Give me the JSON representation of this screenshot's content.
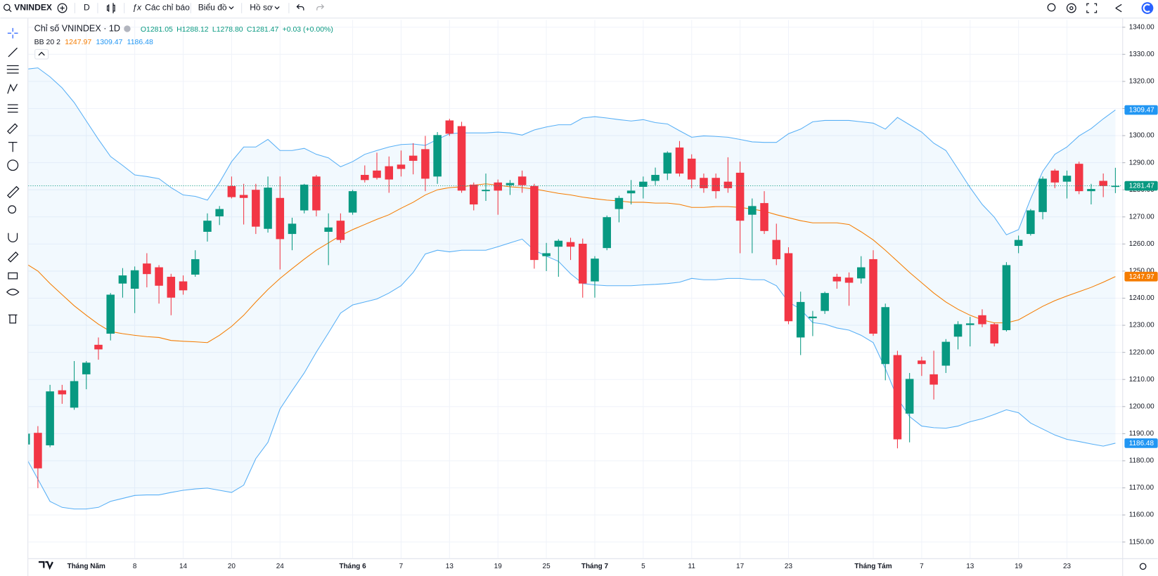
{
  "toolbar": {
    "symbol": "VNINDEX",
    "interval": "D",
    "indicators": "Các chỉ báo",
    "chart": "Biểu đồ",
    "profile": "Hồ sơ"
  },
  "legend": {
    "title": "Chỉ số VNINDEX · 1D",
    "ohlc": [
      "O1281.05",
      "H1288.12",
      "L1278.80",
      "C1281.47"
    ],
    "change": "+0.03 (+0.00%)",
    "indicator": "BB 20 2"
  },
  "chart_data": {
    "type": "candlestick",
    "up_color": "#089981",
    "down_color": "#f23645",
    "categories": [
      null,
      null,
      null,
      null,
      null,
      "Tháng Năm",
      null,
      null,
      null,
      "8",
      null,
      null,
      null,
      "14",
      null,
      null,
      null,
      "20",
      null,
      null,
      null,
      "24",
      null,
      null,
      null,
      null,
      null,
      "Tháng 6",
      null,
      null,
      null,
      "7",
      null,
      null,
      null,
      "13",
      null,
      null,
      null,
      "19",
      null,
      null,
      null,
      "25",
      null,
      null,
      null,
      "Tháng 7",
      null,
      null,
      null,
      "5",
      null,
      null,
      null,
      "11",
      null,
      null,
      null,
      "17",
      null,
      null,
      null,
      "23",
      null,
      null,
      null,
      null,
      null,
      null,
      "Tháng Tám",
      null,
      null,
      null,
      "7",
      null,
      null,
      null,
      "13",
      null,
      null,
      null,
      "19",
      null,
      null,
      null,
      "23",
      null,
      null,
      null,
      null
    ],
    "candles": {
      "open": [
        1186,
        1190.3,
        1185.7,
        1206,
        1199.6,
        1211.9,
        1222.8,
        1226.9,
        1245.4,
        1243.5,
        1252.8,
        1251.4,
        1247.9,
        1246.2,
        1248.7,
        1264.5,
        1270.2,
        1281.4,
        1278.1,
        1280,
        1265.6,
        1277,
        1263.7,
        1272.4,
        1284.9,
        1264.5,
        1268.6,
        1271.6,
        1285.5,
        1287.1,
        1288.7,
        1289.3,
        1292.6,
        1295,
        1284.9,
        1305.6,
        1303.5,
        1281.9,
        1279.5,
        1282.7,
        1281.7,
        1284.9,
        1281.4,
        1255.5,
        1259,
        1260.7,
        1260.1,
        1246.2,
        1258.5,
        1272.9,
        1278.7,
        1281.1,
        1283.3,
        1286,
        1295.6,
        1291.5,
        1284.4,
        1284.4,
        1283,
        1286.3,
        1270.8,
        1275.1,
        1261.5,
        1256.6,
        1225.5,
        1232.6,
        1235.3,
        1247.9,
        1247.6,
        1247.3,
        1254.4,
        1215.7,
        1219,
        1197.4,
        1217,
        1211.9,
        1215.1,
        1225.8,
        1230.1,
        1233.7,
        1230.4,
        1228.2,
        1259.3,
        1263.7,
        1271.8,
        1287.1,
        1283,
        1289.6,
        1279.5,
        1283.3,
        1281.05
      ],
      "high": [
        1191,
        1192.8,
        1208,
        1208,
        1216.8,
        1216.8,
        1225.5,
        1241.9,
        1251.1,
        1251.7,
        1256.6,
        1252.2,
        1249,
        1248.4,
        1257.7,
        1271.3,
        1274,
        1284.9,
        1282.2,
        1282.2,
        1284.9,
        1284.9,
        1269.7,
        1282.2,
        1285.5,
        1271.3,
        1271.3,
        1280,
        1289,
        1293.7,
        1292.3,
        1294.5,
        1297.2,
        1299.9,
        1301.3,
        1306.2,
        1305.1,
        1282.7,
        1286,
        1283.8,
        1283.6,
        1287.1,
        1282.2,
        1260.4,
        1261.8,
        1262.3,
        1262,
        1255.5,
        1270.5,
        1277.8,
        1283.6,
        1284.9,
        1288.2,
        1294.2,
        1298,
        1293.1,
        1286,
        1286,
        1292,
        1290.4,
        1276.8,
        1279.5,
        1267.5,
        1258.8,
        1242.4,
        1235.3,
        1242.4,
        1249,
        1249.5,
        1255.5,
        1257.7,
        1238,
        1220.6,
        1212.4,
        1218.4,
        1220.6,
        1224.9,
        1231.5,
        1233.1,
        1235.9,
        1230.9,
        1253.3,
        1263.1,
        1272.9,
        1284.9,
        1287.7,
        1287.1,
        1290.4,
        1282.2,
        1286,
        1288.12
      ],
      "low": [
        1184,
        1169.9,
        1185,
        1201,
        1198.8,
        1206.4,
        1217.3,
        1224.4,
        1240.2,
        1234.5,
        1244,
        1238,
        1233.7,
        1241.3,
        1247.9,
        1260.9,
        1267,
        1276.8,
        1267.2,
        1263.7,
        1264.2,
        1250.6,
        1257.7,
        1271.3,
        1270.2,
        1252.2,
        1260.4,
        1270.8,
        1282.7,
        1283.8,
        1278.9,
        1284.9,
        1285.7,
        1279.5,
        1282.2,
        1299.9,
        1278.9,
        1272.4,
        1275.9,
        1270.8,
        1278.1,
        1278.9,
        1250.9,
        1250,
        1247.9,
        1254.1,
        1240.2,
        1240.2,
        1257.7,
        1268,
        1274.6,
        1276.8,
        1281.7,
        1283.6,
        1284.9,
        1280.6,
        1278.9,
        1276.8,
        1278.9,
        1256.6,
        1256.6,
        1263.7,
        1252.2,
        1230.4,
        1219,
        1226,
        1234.2,
        1243.5,
        1237.2,
        1245.4,
        1226.1,
        1209.7,
        1184.6,
        1186.8,
        1211.3,
        1202.6,
        1212.4,
        1221.1,
        1222.2,
        1229.3,
        1222.2,
        1227.7,
        1256.6,
        1263.1,
        1269.1,
        1280.6,
        1276.8,
        1278.4,
        1274.6,
        1277.3,
        1278.8
      ],
      "close": [
        1190,
        1177.2,
        1205.6,
        1204.5,
        1209.4,
        1216.2,
        1221.1,
        1241.3,
        1248.4,
        1250.3,
        1248.9,
        1244.6,
        1240.2,
        1242.9,
        1254.4,
        1268.6,
        1272.9,
        1277.3,
        1277,
        1266.4,
        1280.8,
        1261.8,
        1267.5,
        1281.9,
        1272.4,
        1266.1,
        1261.5,
        1279.5,
        1283.6,
        1284.4,
        1283.8,
        1287.7,
        1290.7,
        1284.1,
        1300.2,
        1300.7,
        1279.7,
        1274.6,
        1280,
        1279.7,
        1282.5,
        1281.7,
        1254.1,
        1256.6,
        1261.2,
        1259,
        1245.4,
        1254.6,
        1269.9,
        1277,
        1279.7,
        1283,
        1285.5,
        1293.7,
        1286,
        1283.8,
        1280.6,
        1279.5,
        1280.6,
        1268.6,
        1274,
        1264.8,
        1254.4,
        1231.5,
        1238.6,
        1233.2,
        1241.9,
        1246.2,
        1245.7,
        1251.4,
        1226.9,
        1236.7,
        1187.9,
        1210.2,
        1215.7,
        1208.1,
        1223.9,
        1230.4,
        1230.7,
        1230.4,
        1223.3,
        1252.2,
        1261.5,
        1272.4,
        1284.1,
        1282.7,
        1285.2,
        1279.5,
        1280.3,
        1281.4,
        1281.47
      ]
    },
    "series": [
      {
        "name": "basis",
        "color": "#f57c00",
        "values": [
          1252.8,
          1250.0,
          1245.4,
          1241.3,
          1237.2,
          1233.7,
          1230.4,
          1227.7,
          1226.9,
          1226.3,
          1225.8,
          1225.5,
          1224.4,
          1224.1,
          1223.9,
          1223.6,
          1226.3,
          1229.6,
          1233.7,
          1238.6,
          1243.2,
          1247.3,
          1250.9,
          1254.4,
          1257.7,
          1260.4,
          1263.1,
          1265.3,
          1267.2,
          1269.1,
          1270.8,
          1273.2,
          1275.4,
          1278.1,
          1280.0,
          1280.8,
          1281.1,
          1281.7,
          1282.2,
          1281.7,
          1281.1,
          1280.8,
          1280.3,
          1279.5,
          1278.7,
          1278.1,
          1277.3,
          1276.7,
          1276.2,
          1275.9,
          1275.4,
          1275.4,
          1275.1,
          1275.1,
          1274.6,
          1273.5,
          1273.5,
          1273.8,
          1273.8,
          1273.5,
          1272.9,
          1272.1,
          1270.8,
          1269.7,
          1268.6,
          1267.8,
          1267.8,
          1267.8,
          1267.2,
          1264.5,
          1261.5,
          1257.7,
          1253.6,
          1249.5,
          1245.7,
          1241.9,
          1238.6,
          1235.9,
          1233.7,
          1232.0,
          1230.9,
          1230.9,
          1232.0,
          1234.5,
          1237.0,
          1239.1,
          1240.8,
          1242.4,
          1244.0,
          1245.9,
          1247.97
        ]
      },
      {
        "name": "upper",
        "color": "#2196f3",
        "values": [
          1324.5,
          1325.0,
          1321.7,
          1317.6,
          1312.2,
          1305.4,
          1298.6,
          1292.3,
          1289.0,
          1285.5,
          1284.9,
          1284.1,
          1280.8,
          1278.1,
          1277.6,
          1276.2,
          1282.7,
          1290.4,
          1295.8,
          1295.8,
          1298.6,
          1294.5,
          1294.5,
          1295.3,
          1293.1,
          1291.8,
          1288.5,
          1290.4,
          1293.1,
          1294.5,
          1295.8,
          1296.7,
          1296.9,
          1296.4,
          1298.6,
          1300.7,
          1301.0,
          1301.0,
          1301.0,
          1301.3,
          1301.0,
          1300.2,
          1302.1,
          1303.2,
          1304.0,
          1304.0,
          1306.5,
          1307.0,
          1306.5,
          1305.9,
          1305.4,
          1305.9,
          1304.8,
          1304.3,
          1301.8,
          1299.4,
          1299.9,
          1299.7,
          1299.4,
          1298.6,
          1297.7,
          1297.5,
          1297.5,
          1300.7,
          1302.4,
          1305.1,
          1305.6,
          1305.6,
          1305.6,
          1305.1,
          1304.6,
          1302.4,
          1306.7,
          1304.0,
          1301.3,
          1297.2,
          1294.5,
          1287.7,
          1280.8,
          1274.6,
          1269.9,
          1263.4,
          1265.3,
          1276.7,
          1286.8,
          1293.1,
          1295.8,
          1299.9,
          1302.6,
          1306.2,
          1309.47
        ]
      },
      {
        "name": "lower",
        "color": "#2196f3",
        "values": [
          1181.3,
          1173.2,
          1165.0,
          1162.8,
          1162.2,
          1162.2,
          1162.8,
          1165.0,
          1166.1,
          1167.2,
          1167.4,
          1167.4,
          1168.3,
          1169.1,
          1169.6,
          1169.9,
          1169.1,
          1168.3,
          1171.0,
          1180.8,
          1186.8,
          1199.1,
          1205.9,
          1212.4,
          1220.1,
          1227.2,
          1234.5,
          1237.5,
          1238.6,
          1239.7,
          1241.9,
          1244.6,
          1249.5,
          1256.3,
          1257.7,
          1257.1,
          1257.7,
          1257.7,
          1257.7,
          1259.0,
          1260.4,
          1261.8,
          1257.7,
          1255.5,
          1253.6,
          1249.0,
          1245.4,
          1244.9,
          1244.6,
          1244.6,
          1244.6,
          1244.9,
          1245.1,
          1245.4,
          1245.9,
          1247.3,
          1246.8,
          1246.8,
          1247.3,
          1247.3,
          1246.8,
          1246.8,
          1244.6,
          1238.6,
          1235.9,
          1231.0,
          1230.4,
          1229.0,
          1228.2,
          1226.3,
          1223.6,
          1214.0,
          1203.1,
          1196.3,
          1192.8,
          1192.2,
          1192.0,
          1192.8,
          1194.4,
          1195.5,
          1197.1,
          1198.8,
          1197.7,
          1193.9,
          1191.7,
          1189.5,
          1187.9,
          1187.1,
          1186.2,
          1185.4,
          1186.48
        ]
      }
    ],
    "band_fill": "rgba(33,150,243,0.06)",
    "ylim": [
      1144,
      1342.7
    ],
    "yticks": [
      {
        "value": 1150,
        "label": "1150.00"
      },
      {
        "value": 1160,
        "label": "1160.00"
      },
      {
        "value": 1170,
        "label": "1170.00"
      },
      {
        "value": 1180,
        "label": "1180.00"
      },
      {
        "value": 1190,
        "label": "1190.00"
      },
      {
        "value": 1200,
        "label": "1200.00"
      },
      {
        "value": 1210,
        "label": "1210.00"
      },
      {
        "value": 1220,
        "label": "1220.00"
      },
      {
        "value": 1230,
        "label": "1230.00"
      },
      {
        "value": 1240,
        "label": "1240.00"
      },
      {
        "value": 1250,
        "label": "1250.00"
      },
      {
        "value": 1260,
        "label": "1260.00"
      },
      {
        "value": 1270,
        "label": "1270.00"
      },
      {
        "value": 1280,
        "label": "1280.00"
      },
      {
        "value": 1290,
        "label": "1290.00"
      },
      {
        "value": 1300,
        "label": "1300.00"
      },
      {
        "value": 1310,
        "label": "1310.00"
      },
      {
        "value": 1320,
        "label": "1320.00"
      },
      {
        "value": 1330,
        "label": "1330.00"
      },
      {
        "value": 1340,
        "label": "1340.00"
      }
    ],
    "grid": true
  }
}
